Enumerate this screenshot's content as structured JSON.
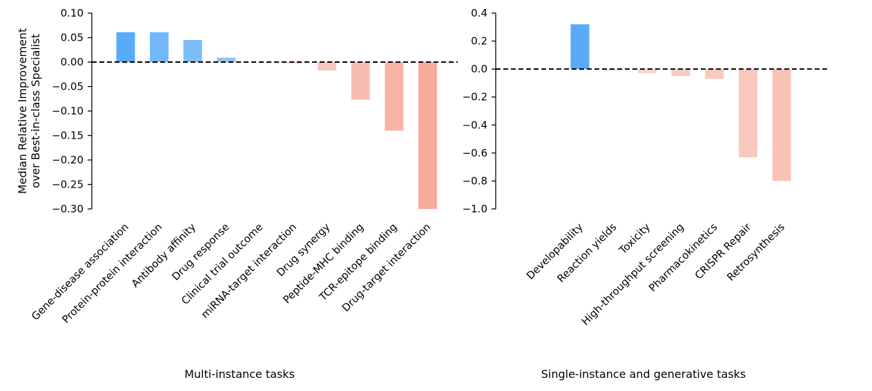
{
  "chart_data": [
    {
      "type": "bar",
      "ylabel_lines": [
        "Median Relative Improvement",
        "over Best-in-class Specialist"
      ],
      "xlabel": "Multi-instance tasks",
      "ylim": [
        -0.3,
        0.1
      ],
      "yticks": [
        0.1,
        0.05,
        0.0,
        -0.05,
        -0.1,
        -0.15,
        -0.2,
        -0.25,
        -0.3
      ],
      "ytick_labels": [
        "0.10",
        "0.05",
        "0.00",
        "−0.05",
        "−0.10",
        "−0.15",
        "−0.20",
        "−0.25",
        "−0.30"
      ],
      "categories": [
        "Gene-disease association",
        "Protein-protein interaction",
        "Antibody affinity",
        "Drug response",
        "Clinical trial outcome",
        "miRNA-target interaction",
        "Drug synergy",
        "Peptide-MHC binding",
        "TCR-epitope binding",
        "Drug-target interaction"
      ],
      "values": [
        0.061,
        0.061,
        0.045,
        0.009,
        0.0,
        -0.003,
        -0.017,
        -0.077,
        -0.14,
        -0.3
      ],
      "colors": [
        "#5aabf7",
        "#72b7f8",
        "#7cbcf8",
        "#8cc4f8",
        "#f6c3b7",
        "#f8d4cb",
        "#f8c6ba",
        "#f8bdb0",
        "#f8b3a5",
        "#f8ab9a"
      ]
    },
    {
      "type": "bar",
      "xlabel": "Single-instance and generative tasks",
      "ylim": [
        -1.0,
        0.4
      ],
      "yticks": [
        0.4,
        0.2,
        0.0,
        -0.2,
        -0.4,
        -0.6,
        -0.8,
        -1.0
      ],
      "ytick_labels": [
        "0.4",
        "0.2",
        "0.0",
        "−0.2",
        "−0.4",
        "−0.6",
        "−0.8",
        "−1.0"
      ],
      "categories": [
        "Developability",
        "Reaction yields",
        "Toxicity",
        "High-throughput screening",
        "Pharmacokinetics",
        "CRISPR Repair",
        "Retrosynthesis"
      ],
      "values": [
        0.32,
        -0.01,
        -0.03,
        -0.05,
        -0.07,
        -0.63,
        -0.8
      ],
      "colors": [
        "#5aabf7",
        "#f8d8d0",
        "#f8d4cb",
        "#f8cdc2",
        "#f8c9be",
        "#f8c8bc",
        "#f8c3b7"
      ]
    }
  ]
}
